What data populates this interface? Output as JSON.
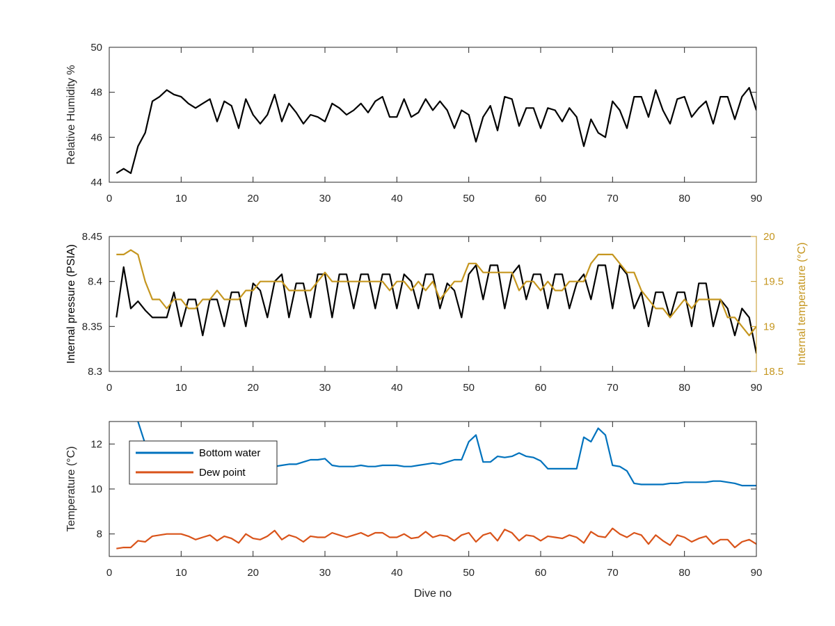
{
  "colors": {
    "axis": "#262626",
    "black_series": "#000000",
    "gold_series": "#C5961F",
    "blue_series": "#0072BD",
    "orange_series": "#D95319"
  },
  "chart_data": [
    {
      "type": "line",
      "xlabel": "",
      "ylabel": "Relative Humidity %",
      "xlim": [
        0,
        90
      ],
      "ylim": [
        44,
        50
      ],
      "xticks": [
        "0",
        "10",
        "20",
        "30",
        "40",
        "50",
        "60",
        "70",
        "80",
        "90"
      ],
      "yticks": [
        "44",
        "46",
        "48",
        "50"
      ],
      "grid": false,
      "series": [
        {
          "color": "#000000",
          "x": [
            1,
            2,
            3,
            4,
            5,
            6,
            7,
            8,
            9,
            10,
            11,
            12,
            13,
            14,
            15,
            16,
            17,
            18,
            19,
            20,
            21,
            22,
            23,
            24,
            25,
            26,
            27,
            28,
            29,
            30,
            31,
            32,
            33,
            34,
            35,
            36,
            37,
            38,
            39,
            40,
            41,
            42,
            43,
            44,
            45,
            46,
            47,
            48,
            49,
            50,
            51,
            52,
            53,
            54,
            55,
            56,
            57,
            58,
            59,
            60,
            61,
            62,
            63,
            64,
            65,
            66,
            67,
            68,
            69,
            70,
            71,
            72,
            73,
            74,
            75,
            76,
            77,
            78,
            79,
            80,
            81,
            82,
            83,
            84,
            85,
            86,
            87,
            88,
            89,
            90
          ],
          "y": [
            44.4,
            44.6,
            44.4,
            45.6,
            46.2,
            47.6,
            47.8,
            48.1,
            47.9,
            47.8,
            47.5,
            47.3,
            47.5,
            47.7,
            46.7,
            47.6,
            47.4,
            46.4,
            47.7,
            47.0,
            46.6,
            47.0,
            47.9,
            46.7,
            47.5,
            47.1,
            46.6,
            47.0,
            46.9,
            46.7,
            47.5,
            47.3,
            47.0,
            47.2,
            47.5,
            47.1,
            47.6,
            47.8,
            46.9,
            46.9,
            47.7,
            46.9,
            47.1,
            47.7,
            47.2,
            47.6,
            47.2,
            46.4,
            47.2,
            47.0,
            45.8,
            46.9,
            47.4,
            46.3,
            47.8,
            47.7,
            46.5,
            47.3,
            47.3,
            46.4,
            47.3,
            47.2,
            46.7,
            47.3,
            46.9,
            45.6,
            46.8,
            46.2,
            46.0,
            47.6,
            47.2,
            46.4,
            47.8,
            47.8,
            46.9,
            48.1,
            47.2,
            46.6,
            47.7,
            47.8,
            46.9,
            47.3,
            47.6,
            46.6,
            47.8,
            47.8,
            46.8,
            47.8,
            48.2,
            47.2
          ]
        }
      ]
    },
    {
      "type": "line",
      "xlabel": "",
      "ylabel": "Internal pressure (PSIA)",
      "y2label": "Internal temperature (°C)",
      "xlim": [
        0,
        90
      ],
      "ylim": [
        8.3,
        8.45
      ],
      "y2lim": [
        18.5,
        20
      ],
      "xticks": [
        "0",
        "10",
        "20",
        "30",
        "40",
        "50",
        "60",
        "70",
        "80",
        "90"
      ],
      "yticks": [
        "8.3",
        "8.35",
        "8.4",
        "8.45"
      ],
      "y2ticks": [
        "18.5",
        "19",
        "19.5",
        "20"
      ],
      "grid": false,
      "series": [
        {
          "color": "#000000",
          "axis": "left",
          "x": [
            1,
            2,
            3,
            4,
            5,
            6,
            7,
            8,
            9,
            10,
            11,
            12,
            13,
            14,
            15,
            16,
            17,
            18,
            19,
            20,
            21,
            22,
            23,
            24,
            25,
            26,
            27,
            28,
            29,
            30,
            31,
            32,
            33,
            34,
            35,
            36,
            37,
            38,
            39,
            40,
            41,
            42,
            43,
            44,
            45,
            46,
            47,
            48,
            49,
            50,
            51,
            52,
            53,
            54,
            55,
            56,
            57,
            58,
            59,
            60,
            61,
            62,
            63,
            64,
            65,
            66,
            67,
            68,
            69,
            70,
            71,
            72,
            73,
            74,
            75,
            76,
            77,
            78,
            79,
            80,
            81,
            82,
            83,
            84,
            85,
            86,
            87,
            88,
            89,
            90
          ],
          "y": [
            8.36,
            8.416,
            8.37,
            8.378,
            8.368,
            8.36,
            8.36,
            8.36,
            8.388,
            8.35,
            8.38,
            8.38,
            8.34,
            8.38,
            8.38,
            8.35,
            8.388,
            8.388,
            8.35,
            8.398,
            8.39,
            8.36,
            8.4,
            8.408,
            8.36,
            8.398,
            8.398,
            8.36,
            8.408,
            8.408,
            8.36,
            8.408,
            8.408,
            8.37,
            8.408,
            8.408,
            8.37,
            8.408,
            8.408,
            8.37,
            8.408,
            8.4,
            8.37,
            8.408,
            8.408,
            8.37,
            8.398,
            8.39,
            8.36,
            8.408,
            8.418,
            8.38,
            8.418,
            8.418,
            8.37,
            8.408,
            8.418,
            8.38,
            8.408,
            8.408,
            8.37,
            8.408,
            8.408,
            8.37,
            8.398,
            8.408,
            8.38,
            8.418,
            8.418,
            8.37,
            8.418,
            8.408,
            8.37,
            8.388,
            8.35,
            8.388,
            8.388,
            8.36,
            8.388,
            8.388,
            8.35,
            8.398,
            8.398,
            8.35,
            8.38,
            8.37,
            8.34,
            8.37,
            8.36,
            8.32
          ]
        },
        {
          "color": "#C5961F",
          "axis": "right",
          "x": [
            1,
            2,
            3,
            4,
            5,
            6,
            7,
            8,
            9,
            10,
            11,
            12,
            13,
            14,
            15,
            16,
            17,
            18,
            19,
            20,
            21,
            22,
            23,
            24,
            25,
            26,
            27,
            28,
            29,
            30,
            31,
            32,
            33,
            34,
            35,
            36,
            37,
            38,
            39,
            40,
            41,
            42,
            43,
            44,
            45,
            46,
            47,
            48,
            49,
            50,
            51,
            52,
            53,
            54,
            55,
            56,
            57,
            58,
            59,
            60,
            61,
            62,
            63,
            64,
            65,
            66,
            67,
            68,
            69,
            70,
            71,
            72,
            73,
            74,
            75,
            76,
            77,
            78,
            79,
            80,
            81,
            82,
            83,
            84,
            85,
            86,
            87,
            88,
            89,
            90
          ],
          "y": [
            19.8,
            19.8,
            19.85,
            19.8,
            19.5,
            19.3,
            19.3,
            19.2,
            19.3,
            19.3,
            19.2,
            19.2,
            19.3,
            19.3,
            19.4,
            19.3,
            19.3,
            19.3,
            19.4,
            19.4,
            19.5,
            19.5,
            19.5,
            19.5,
            19.4,
            19.4,
            19.4,
            19.4,
            19.5,
            19.6,
            19.5,
            19.5,
            19.5,
            19.5,
            19.5,
            19.5,
            19.5,
            19.5,
            19.4,
            19.5,
            19.5,
            19.4,
            19.5,
            19.4,
            19.5,
            19.3,
            19.4,
            19.5,
            19.5,
            19.7,
            19.7,
            19.6,
            19.6,
            19.6,
            19.6,
            19.6,
            19.4,
            19.5,
            19.5,
            19.4,
            19.5,
            19.4,
            19.4,
            19.5,
            19.5,
            19.5,
            19.7,
            19.8,
            19.8,
            19.8,
            19.7,
            19.6,
            19.6,
            19.4,
            19.3,
            19.2,
            19.2,
            19.1,
            19.2,
            19.3,
            19.2,
            19.3,
            19.3,
            19.3,
            19.3,
            19.1,
            19.1,
            19.0,
            18.9,
            19.0
          ]
        }
      ]
    },
    {
      "type": "line",
      "xlabel": "Dive no",
      "ylabel": "Temperature (°C)",
      "xlim": [
        0,
        90
      ],
      "ylim": [
        7,
        13
      ],
      "xticks": [
        "0",
        "10",
        "20",
        "30",
        "40",
        "50",
        "60",
        "70",
        "80",
        "90"
      ],
      "yticks": [
        "8",
        "10",
        "12"
      ],
      "grid": false,
      "legend_position": "top-left",
      "series": [
        {
          "name": "Bottom water",
          "color": "#0072BD",
          "x": [
            4,
            5,
            6,
            7,
            8,
            9,
            10,
            11,
            12,
            13,
            14,
            15,
            16,
            17,
            18,
            19,
            20,
            21,
            22,
            23,
            24,
            25,
            26,
            27,
            28,
            29,
            30,
            31,
            32,
            33,
            34,
            35,
            36,
            37,
            38,
            39,
            40,
            41,
            42,
            43,
            44,
            45,
            46,
            47,
            48,
            49,
            50,
            51,
            52,
            53,
            54,
            55,
            56,
            57,
            58,
            59,
            60,
            61,
            62,
            63,
            64,
            65,
            66,
            67,
            68,
            69,
            70,
            71,
            72,
            73,
            74,
            75,
            76,
            77,
            78,
            79,
            80,
            81,
            82,
            83,
            84,
            85,
            86,
            87,
            88,
            89,
            90
          ],
          "y": [
            13.0,
            12.0,
            11.6,
            11.4,
            11.3,
            11.2,
            11.2,
            11.2,
            11.1,
            11.1,
            11.1,
            11.1,
            11.1,
            11.1,
            11.1,
            11.1,
            11.1,
            11.1,
            11.1,
            11.0,
            11.05,
            11.1,
            11.1,
            11.2,
            11.3,
            11.3,
            11.35,
            11.05,
            11.0,
            11.0,
            11.0,
            11.05,
            11.0,
            11.0,
            11.05,
            11.05,
            11.05,
            11.0,
            11.0,
            11.05,
            11.1,
            11.15,
            11.1,
            11.2,
            11.3,
            11.3,
            12.1,
            12.4,
            11.2,
            11.2,
            11.45,
            11.4,
            11.45,
            11.6,
            11.45,
            11.4,
            11.25,
            10.9,
            10.9,
            10.9,
            10.9,
            10.9,
            12.3,
            12.1,
            12.7,
            12.4,
            11.05,
            11.0,
            10.8,
            10.25,
            10.2,
            10.2,
            10.2,
            10.2,
            10.25,
            10.25,
            10.3,
            10.3,
            10.3,
            10.3,
            10.35,
            10.35,
            10.3,
            10.25,
            10.15,
            10.15,
            10.15
          ]
        },
        {
          "name": "Dew point",
          "color": "#D95319",
          "x": [
            1,
            2,
            3,
            4,
            5,
            6,
            7,
            8,
            9,
            10,
            11,
            12,
            13,
            14,
            15,
            16,
            17,
            18,
            19,
            20,
            21,
            22,
            23,
            24,
            25,
            26,
            27,
            28,
            29,
            30,
            31,
            32,
            33,
            34,
            35,
            36,
            37,
            38,
            39,
            40,
            41,
            42,
            43,
            44,
            45,
            46,
            47,
            48,
            49,
            50,
            51,
            52,
            53,
            54,
            55,
            56,
            57,
            58,
            59,
            60,
            61,
            62,
            63,
            64,
            65,
            66,
            67,
            68,
            69,
            70,
            71,
            72,
            73,
            74,
            75,
            76,
            77,
            78,
            79,
            80,
            81,
            82,
            83,
            84,
            85,
            86,
            87,
            88,
            89,
            90
          ],
          "y": [
            7.35,
            7.4,
            7.4,
            7.7,
            7.65,
            7.9,
            7.95,
            8.0,
            8.0,
            8.0,
            7.9,
            7.75,
            7.85,
            7.95,
            7.7,
            7.9,
            7.8,
            7.6,
            8.0,
            7.8,
            7.75,
            7.9,
            8.15,
            7.75,
            7.95,
            7.85,
            7.65,
            7.9,
            7.85,
            7.85,
            8.05,
            7.95,
            7.85,
            7.95,
            8.05,
            7.9,
            8.05,
            8.05,
            7.85,
            7.85,
            8.0,
            7.8,
            7.85,
            8.1,
            7.85,
            7.95,
            7.9,
            7.7,
            7.95,
            8.05,
            7.65,
            7.95,
            8.05,
            7.7,
            8.2,
            8.05,
            7.7,
            7.95,
            7.9,
            7.7,
            7.9,
            7.85,
            7.8,
            7.95,
            7.85,
            7.6,
            8.1,
            7.9,
            7.85,
            8.25,
            8.0,
            7.85,
            8.05,
            7.95,
            7.55,
            7.95,
            7.7,
            7.5,
            7.95,
            7.85,
            7.65,
            7.8,
            7.9,
            7.55,
            7.75,
            7.75,
            7.4,
            7.65,
            7.75,
            7.55
          ]
        }
      ]
    }
  ]
}
